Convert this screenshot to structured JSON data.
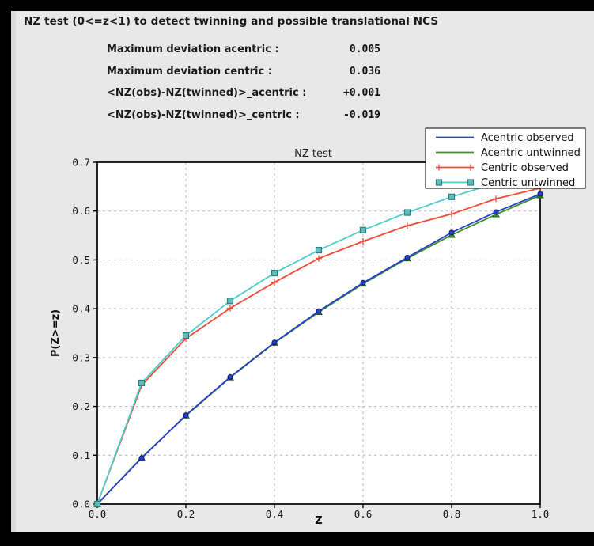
{
  "header": {
    "title": "NZ test (0<=z<1) to detect twinning and possible translational NCS",
    "stats": [
      {
        "label": "Maximum deviation acentric :",
        "value": "0.005"
      },
      {
        "label": "Maximum deviation centric :",
        "value": "0.036"
      },
      {
        "label": "<NZ(obs)-NZ(twinned)>_acentric :",
        "value": "+0.001"
      },
      {
        "label": "<NZ(obs)-NZ(twinned)>_centric :",
        "value": "-0.019"
      }
    ]
  },
  "chart_data": {
    "type": "line",
    "title": "NZ test",
    "xlabel": "Z",
    "ylabel": "P(Z>=z)",
    "xlim": [
      0.0,
      1.0
    ],
    "ylim": [
      0.0,
      0.7
    ],
    "xticks": [
      0.0,
      0.2,
      0.4,
      0.6,
      0.8,
      1.0
    ],
    "yticks": [
      0.0,
      0.1,
      0.2,
      0.3,
      0.4,
      0.5,
      0.6,
      0.7
    ],
    "grid": "dashed",
    "grid_color": "#b8b8b8",
    "legend_position": "upper right",
    "x": [
      0.0,
      0.1,
      0.2,
      0.3,
      0.4,
      0.5,
      0.6,
      0.7,
      0.8,
      0.9,
      1.0
    ],
    "series": [
      {
        "name": "Acentric observed",
        "color": "#2640cc",
        "marker": "circle",
        "marker_fill": "#2640cc",
        "marker_edge": "#0c1670",
        "values": [
          0.0,
          0.094,
          0.182,
          0.26,
          0.331,
          0.395,
          0.453,
          0.505,
          0.556,
          0.598,
          0.635
        ]
      },
      {
        "name": "Acentric untwinned",
        "color": "#3f9128",
        "marker": "triangle",
        "marker_fill": "#3f9128",
        "marker_edge": "#1c5a12",
        "values": [
          0.0,
          0.095,
          0.181,
          0.259,
          0.33,
          0.393,
          0.451,
          0.503,
          0.551,
          0.593,
          0.632
        ]
      },
      {
        "name": "Centric observed",
        "color": "#ee4c38",
        "marker": "plus",
        "marker_fill": "#ee4c38",
        "marker_edge": "#ee4c38",
        "values": [
          0.0,
          0.243,
          0.339,
          0.401,
          0.454,
          0.503,
          0.538,
          0.57,
          0.594,
          0.625,
          0.647
        ]
      },
      {
        "name": "Centric untwinned",
        "color": "#4fcdcd",
        "marker": "square",
        "marker_fill": "#63bdbd",
        "marker_edge": "#2a7f7f",
        "values": [
          0.0,
          0.248,
          0.345,
          0.416,
          0.473,
          0.52,
          0.561,
          0.597,
          0.629,
          0.657,
          0.683
        ]
      }
    ]
  }
}
